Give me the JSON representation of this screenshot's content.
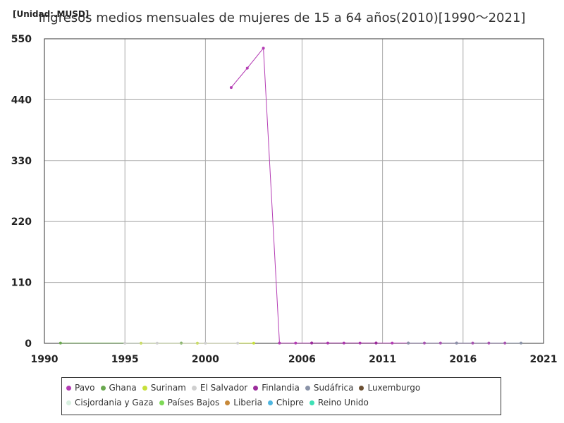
{
  "unit_label": "[Unidad:.MUSD]",
  "chart_data": {
    "type": "line",
    "title": "Ingresos medios mensuales de mujeres de 15 a 64 años(2010)[1990～2021]",
    "xlabel": "",
    "ylabel": "",
    "xlim": [
      1990,
      2021
    ],
    "ylim": [
      0,
      550
    ],
    "x_ticks": [
      "1990",
      "1995",
      "2000",
      "2006",
      "2011",
      "2016",
      "2021"
    ],
    "y_ticks": [
      "0",
      "110",
      "220",
      "330",
      "440",
      "550"
    ],
    "grid": true,
    "legend_position": "bottom",
    "series": [
      {
        "name": "Pavo",
        "color": "#b43cb4",
        "x": [
          2001.6,
          2002.6,
          2003.6,
          2004.6,
          2005.6,
          2006.6,
          2007.6,
          2008.6,
          2009.6,
          2010.6,
          2011.6,
          2012.6,
          2013.6,
          2014.6,
          2015.6,
          2016.6,
          2017.6,
          2018.6
        ],
        "values": [
          462,
          497,
          533,
          0.5,
          0.5,
          0.5,
          0.5,
          0.5,
          0.5,
          0.5,
          0.5,
          0.5,
          0.5,
          0.5,
          0.5,
          0.5,
          0.5,
          0.5
        ]
      },
      {
        "name": "Ghana",
        "color": "#6aa84f",
        "x": [
          1991,
          1998.5
        ],
        "values": [
          0.4,
          0.4
        ]
      },
      {
        "name": "Surinam",
        "color": "#c7e03a",
        "x": [
          1996,
          1999.5,
          2003
        ],
        "values": [
          0.3,
          0.3,
          0.3
        ]
      },
      {
        "name": "El Salvador",
        "color": "#cfcfcf",
        "x": [
          1995,
          1997,
          2000,
          2002
        ],
        "values": [
          0.3,
          0.3,
          0.3,
          0.3
        ]
      },
      {
        "name": "Finlandia",
        "color": "#9b2c9b",
        "x": [
          2006.6,
          2010.6
        ],
        "values": [
          0.6,
          0.6
        ]
      },
      {
        "name": "Sudáfrica",
        "color": "#8a93a8",
        "x": [
          2012.6,
          2015.6,
          2019.6
        ],
        "values": [
          0.5,
          0.5,
          0.5
        ]
      },
      {
        "name": "Luxemburgo",
        "color": "#6b4f33",
        "x": [],
        "values": []
      },
      {
        "name": "Cisjordania y Gaza",
        "color": "#d8f0e0",
        "x": [],
        "values": []
      },
      {
        "name": "Países Bajos",
        "color": "#7ed957",
        "x": [],
        "values": []
      },
      {
        "name": "Liberia",
        "color": "#c7893a",
        "x": [],
        "values": []
      },
      {
        "name": "Chipre",
        "color": "#4fb6e0",
        "x": [],
        "values": []
      },
      {
        "name": "Reino Unido",
        "color": "#3ee0b5",
        "x": [],
        "values": []
      }
    ]
  }
}
